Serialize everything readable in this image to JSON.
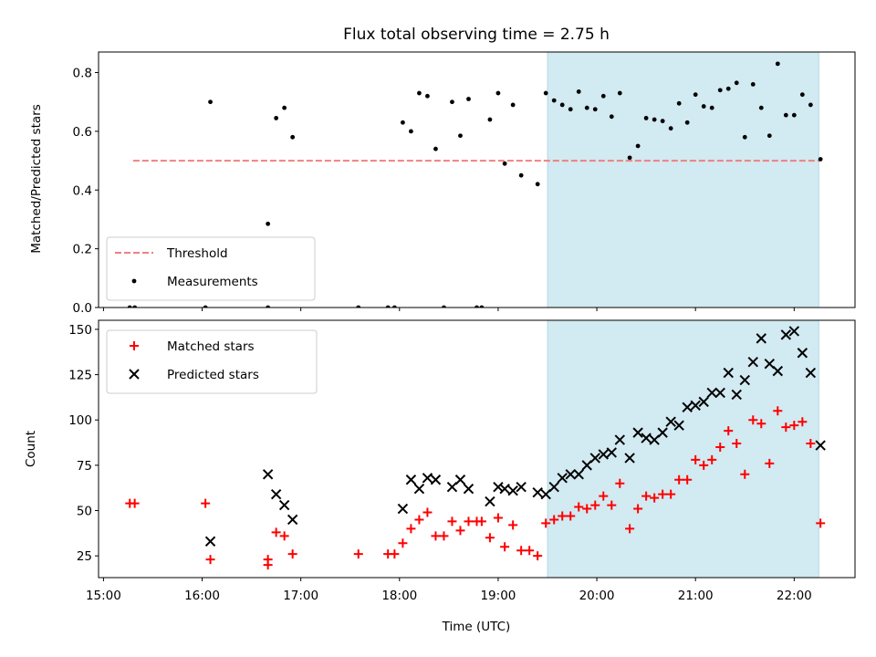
{
  "chart_data": [
    {
      "type": "scatter",
      "title": "Flux total observing time = 2.75 h",
      "xlabel": "",
      "ylabel": "Matched/Predicted stars",
      "xlim": [
        "14:57",
        "22:37"
      ],
      "ylim": [
        0,
        0.87
      ],
      "x_ticks": [
        "15:00",
        "16:00",
        "17:00",
        "18:00",
        "19:00",
        "20:00",
        "21:00",
        "22:00"
      ],
      "y_ticks": [
        "0.0",
        "0.2",
        "0.4",
        "0.6",
        "0.8"
      ],
      "y_tick_values": [
        0,
        0.2,
        0.4,
        0.6,
        0.8
      ],
      "shaded_region": {
        "x": [
          "19:30",
          "22:15"
        ],
        "color": "#add8e6"
      },
      "legend_position": "lower-left",
      "series": [
        {
          "name": "Threshold",
          "style": "dashed-line",
          "color": "#f08080",
          "points": [
            [
              "15:18",
              0.5
            ],
            [
              "22:16",
              0.5
            ]
          ]
        },
        {
          "name": "Measurements",
          "style": "dot",
          "color": "#000000",
          "points": [
            [
              "15:16",
              0.0
            ],
            [
              "15:19",
              0.0
            ],
            [
              "16:02",
              0.0
            ],
            [
              "16:05",
              0.7
            ],
            [
              "16:40",
              0.285
            ],
            [
              "16:40",
              0.0
            ],
            [
              "16:45",
              0.645
            ],
            [
              "16:50",
              0.68
            ],
            [
              "16:55",
              0.58
            ],
            [
              "17:35",
              0.0
            ],
            [
              "17:53",
              0.0
            ],
            [
              "17:57",
              0.0
            ],
            [
              "18:02",
              0.63
            ],
            [
              "18:07",
              0.6
            ],
            [
              "18:12",
              0.73
            ],
            [
              "18:17",
              0.72
            ],
            [
              "18:22",
              0.54
            ],
            [
              "18:27",
              0.0
            ],
            [
              "18:32",
              0.7
            ],
            [
              "18:37",
              0.585
            ],
            [
              "18:42",
              0.71
            ],
            [
              "18:47",
              0.0
            ],
            [
              "18:50",
              0.0
            ],
            [
              "18:55",
              0.64
            ],
            [
              "19:00",
              0.73
            ],
            [
              "19:04",
              0.49
            ],
            [
              "19:09",
              0.69
            ],
            [
              "19:14",
              0.45
            ],
            [
              "19:24",
              0.42
            ],
            [
              "19:29",
              0.73
            ],
            [
              "19:34",
              0.705
            ],
            [
              "19:39",
              0.69
            ],
            [
              "19:44",
              0.675
            ],
            [
              "19:49",
              0.735
            ],
            [
              "19:54",
              0.68
            ],
            [
              "19:59",
              0.675
            ],
            [
              "20:04",
              0.72
            ],
            [
              "20:09",
              0.65
            ],
            [
              "20:14",
              0.73
            ],
            [
              "20:20",
              0.51
            ],
            [
              "20:25",
              0.55
            ],
            [
              "20:30",
              0.645
            ],
            [
              "20:35",
              0.64
            ],
            [
              "20:40",
              0.635
            ],
            [
              "20:45",
              0.61
            ],
            [
              "20:50",
              0.695
            ],
            [
              "20:55",
              0.63
            ],
            [
              "21:00",
              0.725
            ],
            [
              "21:05",
              0.685
            ],
            [
              "21:10",
              0.68
            ],
            [
              "21:15",
              0.74
            ],
            [
              "21:20",
              0.745
            ],
            [
              "21:25",
              0.765
            ],
            [
              "21:30",
              0.58
            ],
            [
              "21:35",
              0.76
            ],
            [
              "21:40",
              0.68
            ],
            [
              "21:45",
              0.585
            ],
            [
              "21:50",
              0.83
            ],
            [
              "21:55",
              0.655
            ],
            [
              "22:00",
              0.655
            ],
            [
              "22:05",
              0.725
            ],
            [
              "22:10",
              0.69
            ],
            [
              "22:16",
              0.505
            ]
          ]
        }
      ]
    },
    {
      "type": "scatter",
      "title": "",
      "xlabel": "Time (UTC)",
      "ylabel": "Count",
      "xlim": [
        "14:57",
        "22:37"
      ],
      "ylim": [
        13,
        155
      ],
      "x_ticks": [
        "15:00",
        "16:00",
        "17:00",
        "18:00",
        "19:00",
        "20:00",
        "21:00",
        "22:00"
      ],
      "y_ticks": [
        "25",
        "50",
        "75",
        "100",
        "125",
        "150"
      ],
      "y_tick_values": [
        25,
        50,
        75,
        100,
        125,
        150
      ],
      "shaded_region": {
        "x": [
          "19:30",
          "22:15"
        ],
        "color": "#add8e6"
      },
      "legend_position": "top-left",
      "series": [
        {
          "name": "Matched stars",
          "style": "plus",
          "color": "#ff0000",
          "points": [
            [
              "15:16",
              54
            ],
            [
              "15:19",
              54
            ],
            [
              "16:02",
              54
            ],
            [
              "16:05",
              23
            ],
            [
              "16:40",
              23
            ],
            [
              "16:40",
              20
            ],
            [
              "16:45",
              38
            ],
            [
              "16:50",
              36
            ],
            [
              "16:55",
              26
            ],
            [
              "17:35",
              26
            ],
            [
              "17:53",
              26
            ],
            [
              "17:57",
              26
            ],
            [
              "18:02",
              32
            ],
            [
              "18:07",
              40
            ],
            [
              "18:12",
              45
            ],
            [
              "18:17",
              49
            ],
            [
              "18:22",
              36
            ],
            [
              "18:27",
              36
            ],
            [
              "18:32",
              44
            ],
            [
              "18:37",
              39
            ],
            [
              "18:42",
              44
            ],
            [
              "18:47",
              44
            ],
            [
              "18:50",
              44
            ],
            [
              "18:55",
              35
            ],
            [
              "19:00",
              46
            ],
            [
              "19:04",
              30
            ],
            [
              "19:09",
              42
            ],
            [
              "19:14",
              28
            ],
            [
              "19:19",
              28
            ],
            [
              "19:24",
              25
            ],
            [
              "19:29",
              43
            ],
            [
              "19:34",
              45
            ],
            [
              "19:39",
              47
            ],
            [
              "19:44",
              47
            ],
            [
              "19:49",
              52
            ],
            [
              "19:54",
              51
            ],
            [
              "19:59",
              53
            ],
            [
              "20:04",
              58
            ],
            [
              "20:09",
              53
            ],
            [
              "20:14",
              65
            ],
            [
              "20:20",
              40
            ],
            [
              "20:25",
              51
            ],
            [
              "20:30",
              58
            ],
            [
              "20:35",
              57
            ],
            [
              "20:40",
              59
            ],
            [
              "20:45",
              59
            ],
            [
              "20:50",
              67
            ],
            [
              "20:55",
              67
            ],
            [
              "21:00",
              78
            ],
            [
              "21:05",
              75
            ],
            [
              "21:10",
              78
            ],
            [
              "21:15",
              85
            ],
            [
              "21:20",
              94
            ],
            [
              "21:25",
              87
            ],
            [
              "21:30",
              70
            ],
            [
              "21:35",
              100
            ],
            [
              "21:40",
              98
            ],
            [
              "21:45",
              76
            ],
            [
              "21:50",
              105
            ],
            [
              "21:55",
              96
            ],
            [
              "22:00",
              97
            ],
            [
              "22:05",
              99
            ],
            [
              "22:10",
              87
            ],
            [
              "22:16",
              43
            ]
          ]
        },
        {
          "name": "Predicted stars",
          "style": "x",
          "color": "#000000",
          "points": [
            [
              "16:05",
              33
            ],
            [
              "16:40",
              70
            ],
            [
              "16:45",
              59
            ],
            [
              "16:50",
              53
            ],
            [
              "16:55",
              45
            ],
            [
              "18:02",
              51
            ],
            [
              "18:07",
              67
            ],
            [
              "18:12",
              62
            ],
            [
              "18:17",
              68
            ],
            [
              "18:22",
              67
            ],
            [
              "18:32",
              63
            ],
            [
              "18:37",
              67
            ],
            [
              "18:42",
              62
            ],
            [
              "18:55",
              55
            ],
            [
              "19:00",
              63
            ],
            [
              "19:04",
              62
            ],
            [
              "19:09",
              61
            ],
            [
              "19:14",
              63
            ],
            [
              "19:24",
              60
            ],
            [
              "19:29",
              59
            ],
            [
              "19:34",
              63
            ],
            [
              "19:39",
              68
            ],
            [
              "19:44",
              70
            ],
            [
              "19:49",
              70
            ],
            [
              "19:54",
              75
            ],
            [
              "19:59",
              79
            ],
            [
              "20:04",
              81
            ],
            [
              "20:09",
              82
            ],
            [
              "20:14",
              89
            ],
            [
              "20:20",
              79
            ],
            [
              "20:25",
              93
            ],
            [
              "20:30",
              90
            ],
            [
              "20:35",
              89
            ],
            [
              "20:40",
              93
            ],
            [
              "20:45",
              99
            ],
            [
              "20:50",
              97
            ],
            [
              "20:55",
              107
            ],
            [
              "21:00",
              108
            ],
            [
              "21:05",
              110
            ],
            [
              "21:10",
              115
            ],
            [
              "21:15",
              115
            ],
            [
              "21:20",
              126
            ],
            [
              "21:25",
              114
            ],
            [
              "21:30",
              122
            ],
            [
              "21:35",
              132
            ],
            [
              "21:40",
              145
            ],
            [
              "21:45",
              131
            ],
            [
              "21:50",
              127
            ],
            [
              "21:55",
              147
            ],
            [
              "22:00",
              149
            ],
            [
              "22:05",
              137
            ],
            [
              "22:10",
              126
            ],
            [
              "22:16",
              86
            ]
          ]
        }
      ]
    }
  ]
}
